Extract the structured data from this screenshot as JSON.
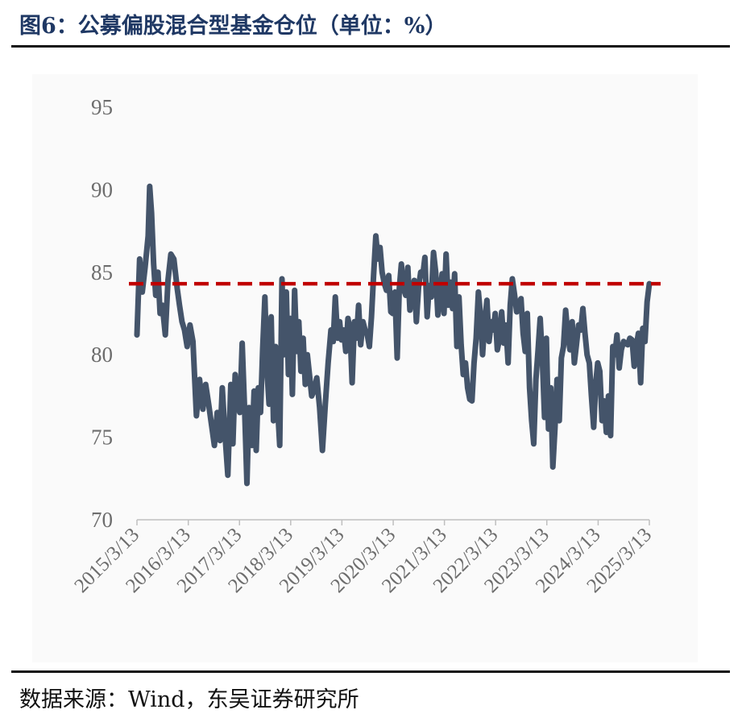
{
  "header": {
    "title": "图6：公募偏股混合型基金仓位（单位：%）"
  },
  "footer": {
    "source": "数据来源：Wind，东吴证券研究所"
  },
  "colors": {
    "title": "#1f3864",
    "series": "#44546a",
    "reference_line": "#c00000",
    "tick_label": "#6d6d6d"
  },
  "chart_data": {
    "type": "line",
    "title": "",
    "xlabel": "",
    "ylabel": "",
    "ylim": [
      70,
      95
    ],
    "yticks": [
      70,
      75,
      80,
      85,
      90,
      95
    ],
    "xlim": [
      "2015-03-13",
      "2025-03-13"
    ],
    "xticks": [
      "2015/3/13",
      "2016/3/13",
      "2017/3/13",
      "2018/3/13",
      "2019/3/13",
      "2020/3/13",
      "2021/3/13",
      "2022/3/13",
      "2023/3/13",
      "2024/3/13",
      "2025/3/13"
    ],
    "grid": false,
    "legend": "none",
    "reference_line": {
      "value": 84.3,
      "style": "dashed"
    },
    "series": [
      {
        "x": [
          "2015-03-13",
          "2015-04-01",
          "2015-04-20",
          "2015-05-10",
          "2015-06-01",
          "2015-06-12",
          "2015-06-25",
          "2015-07-10",
          "2015-07-25",
          "2015-08-10",
          "2015-08-25",
          "2015-09-10",
          "2015-10-01",
          "2015-10-20",
          "2015-11-10",
          "2015-12-01",
          "2015-12-25",
          "2016-01-10",
          "2016-01-28",
          "2016-02-15",
          "2016-03-05",
          "2016-03-25",
          "2016-04-15",
          "2016-05-10",
          "2016-06-01",
          "2016-06-25",
          "2016-07-15",
          "2016-08-05",
          "2016-08-25",
          "2016-09-15",
          "2016-10-05",
          "2016-10-25",
          "2016-11-10",
          "2016-12-01",
          "2016-12-20",
          "2017-01-10",
          "2017-01-25",
          "2017-02-10",
          "2017-02-28",
          "2017-03-15",
          "2017-04-01",
          "2017-04-20",
          "2017-05-05",
          "2017-05-20",
          "2017-06-10",
          "2017-06-25",
          "2017-07-10",
          "2017-07-25",
          "2017-08-10",
          "2017-08-25",
          "2017-09-10",
          "2017-09-25",
          "2017-10-10",
          "2017-10-25",
          "2017-11-10",
          "2017-11-25",
          "2017-12-10",
          "2017-12-25",
          "2018-01-10",
          "2018-01-25",
          "2018-02-10",
          "2018-02-25",
          "2018-03-10",
          "2018-03-25",
          "2018-04-10",
          "2018-04-25",
          "2018-05-10",
          "2018-05-25",
          "2018-06-10",
          "2018-06-25",
          "2018-07-10",
          "2018-07-25",
          "2018-08-10",
          "2018-08-25",
          "2018-09-15",
          "2018-10-05",
          "2018-10-25",
          "2018-11-15",
          "2018-12-05",
          "2018-12-25",
          "2019-01-10",
          "2019-01-25",
          "2019-02-10",
          "2019-02-25",
          "2019-03-10",
          "2019-03-25",
          "2019-04-10",
          "2019-04-25",
          "2019-05-10",
          "2019-05-25",
          "2019-06-10",
          "2019-06-25",
          "2019-07-10",
          "2019-07-25",
          "2019-08-10",
          "2019-08-25",
          "2019-09-10",
          "2019-09-25",
          "2019-10-10",
          "2019-10-25",
          "2019-11-10",
          "2019-11-25",
          "2019-12-10",
          "2019-12-25",
          "2020-01-10",
          "2020-01-25",
          "2020-02-10",
          "2020-02-25",
          "2020-03-10",
          "2020-03-25",
          "2020-04-10",
          "2020-04-25",
          "2020-05-10",
          "2020-05-25",
          "2020-06-10",
          "2020-06-25",
          "2020-07-10",
          "2020-07-25",
          "2020-08-10",
          "2020-08-25",
          "2020-09-10",
          "2020-09-25",
          "2020-10-10",
          "2020-10-25",
          "2020-11-10",
          "2020-11-25",
          "2020-12-10",
          "2020-12-25",
          "2021-01-10",
          "2021-01-25",
          "2021-02-10",
          "2021-02-25",
          "2021-03-10",
          "2021-03-25",
          "2021-04-10",
          "2021-04-25",
          "2021-05-10",
          "2021-05-25",
          "2021-06-10",
          "2021-06-25",
          "2021-07-10",
          "2021-07-25",
          "2021-08-10",
          "2021-08-25",
          "2021-09-10",
          "2021-09-25",
          "2021-10-10",
          "2021-10-25",
          "2021-11-10",
          "2021-11-25",
          "2021-12-10",
          "2021-12-25",
          "2022-01-10",
          "2022-01-25",
          "2022-02-10",
          "2022-02-25",
          "2022-03-10",
          "2022-03-25",
          "2022-04-10",
          "2022-04-25",
          "2022-05-10",
          "2022-05-25",
          "2022-06-10",
          "2022-06-25",
          "2022-07-10",
          "2022-07-25",
          "2022-08-10",
          "2022-08-25",
          "2022-09-10",
          "2022-09-25",
          "2022-10-10",
          "2022-10-25",
          "2022-11-10",
          "2022-11-25",
          "2022-12-10",
          "2022-12-25",
          "2023-01-10",
          "2023-01-25",
          "2023-02-10",
          "2023-02-25",
          "2023-03-10",
          "2023-03-25",
          "2023-04-10",
          "2023-04-25",
          "2023-05-10",
          "2023-05-25",
          "2023-06-10",
          "2023-06-25",
          "2023-07-10",
          "2023-07-25",
          "2023-08-10",
          "2023-08-25",
          "2023-09-10",
          "2023-09-25",
          "2023-10-10",
          "2023-10-25",
          "2023-11-10",
          "2023-11-25",
          "2023-12-10",
          "2023-12-25",
          "2024-01-10",
          "2024-01-25",
          "2024-02-10",
          "2024-02-25",
          "2024-03-10",
          "2024-03-25",
          "2024-04-10",
          "2024-04-25",
          "2024-05-10",
          "2024-05-25",
          "2024-06-10",
          "2024-06-25",
          "2024-07-10",
          "2024-07-25",
          "2024-08-10",
          "2024-08-25",
          "2024-09-10",
          "2024-09-25",
          "2024-10-10",
          "2024-10-25",
          "2024-11-10",
          "2024-11-25",
          "2024-12-10",
          "2024-12-25",
          "2025-01-10",
          "2025-01-25",
          "2025-02-10",
          "2025-02-25",
          "2025-03-13"
        ],
        "y": [
          81.2,
          85.8,
          83.8,
          85.3,
          87.2,
          90.2,
          88.6,
          85.5,
          83.6,
          85.0,
          82.5,
          83.0,
          81.2,
          84.5,
          86.1,
          85.8,
          84.0,
          83.0,
          82.0,
          81.5,
          80.5,
          81.8,
          80.8,
          76.3,
          78.5,
          76.7,
          78.2,
          77.0,
          75.8,
          74.5,
          76.5,
          74.8,
          78.0,
          75.0,
          72.7,
          78.2,
          74.6,
          78.8,
          77.0,
          76.5,
          80.7,
          76.3,
          72.2,
          76.8,
          74.5,
          77.8,
          74.2,
          78.0,
          76.5,
          80.3,
          83.5,
          79.0,
          77.0,
          82.3,
          76.0,
          80.5,
          76.8,
          74.5,
          84.6,
          80.0,
          83.8,
          78.8,
          82.2,
          77.6,
          83.9,
          80.2,
          82.0,
          79.0,
          81.0,
          78.2,
          80.0,
          78.8,
          77.5,
          77.8,
          78.6,
          76.8,
          74.2,
          77.0,
          79.5,
          81.5,
          80.8,
          83.5,
          81.0,
          82.0,
          80.9,
          81.5,
          80.2,
          82.2,
          81.5,
          78.3,
          82.0,
          81.0,
          83.0,
          80.6,
          82.0,
          81.5,
          81.2,
          80.5,
          82.3,
          84.8,
          87.2,
          85.8,
          86.5,
          85.0,
          84.3,
          83.9,
          84.8,
          82.6,
          82.5,
          83.8,
          79.8,
          84.0,
          85.5,
          84.0,
          83.6,
          85.3,
          82.7,
          83.9,
          84.5,
          82.0,
          84.1,
          85.0,
          84.8,
          85.9,
          82.3,
          84.2,
          83.5,
          86.2,
          85.0,
          82.4,
          83.8,
          84.9,
          82.5,
          86.1,
          83.0,
          84.4,
          82.8,
          84.9,
          80.5,
          83.5,
          80.6,
          78.8,
          79.5,
          78.0,
          77.3,
          77.2,
          79.5,
          81.0,
          83.8,
          82.4,
          80.0,
          82.0,
          83.3,
          80.8,
          82.0,
          81.5,
          82.5,
          80.3,
          81.0,
          82.6,
          80.7,
          81.8,
          79.5,
          83.0,
          84.6,
          83.7,
          82.6,
          83.1,
          83.4,
          81.3,
          80.2,
          82.5,
          78.0,
          76.0,
          74.6,
          78.5,
          80.3,
          82.2,
          79.6,
          76.2,
          81.0,
          75.5,
          78.0,
          73.2,
          75.5,
          78.5,
          76.0,
          79.8,
          80.5,
          82.7,
          81.2,
          80.3,
          82.0,
          79.5,
          80.6,
          81.8,
          81.5,
          82.8,
          81.3,
          80.0,
          79.5,
          77.5,
          75.6,
          78.3,
          79.5,
          79.0,
          76.0,
          77.2,
          75.3,
          77.5,
          75.1,
          80.5,
          80.0,
          81.2,
          79.2,
          80.3,
          80.8,
          80.7,
          80.6,
          81.0,
          80.9,
          79.3,
          80.5,
          81.3,
          78.3,
          81.6,
          80.8,
          83.2,
          84.3
        ]
      }
    ]
  }
}
